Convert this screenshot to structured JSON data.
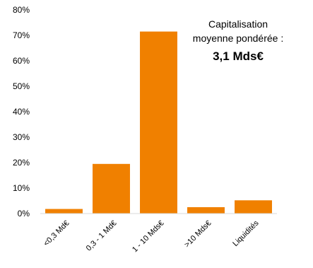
{
  "chart_data": {
    "type": "bar",
    "categories": [
      "<0,3 Md€",
      "0,3 - 1 Md€",
      "1 - 10 Mds€",
      ">10 Mds€",
      "Liquidités"
    ],
    "values": [
      1.8,
      19.5,
      71.5,
      2.5,
      5.2
    ],
    "ylim": [
      0,
      80
    ],
    "yticks": [
      0,
      10,
      20,
      30,
      40,
      50,
      60,
      70,
      80
    ],
    "ytick_labels": [
      "0%",
      "10%",
      "20%",
      "30%",
      "40%",
      "50%",
      "60%",
      "70%",
      "80%"
    ],
    "bar_color": "#F08000",
    "grid": false,
    "legend": "none",
    "annotation": {
      "line1": "Capitalisation",
      "line2": "moyenne pondérée :",
      "value": "3,1 Mds€"
    }
  }
}
